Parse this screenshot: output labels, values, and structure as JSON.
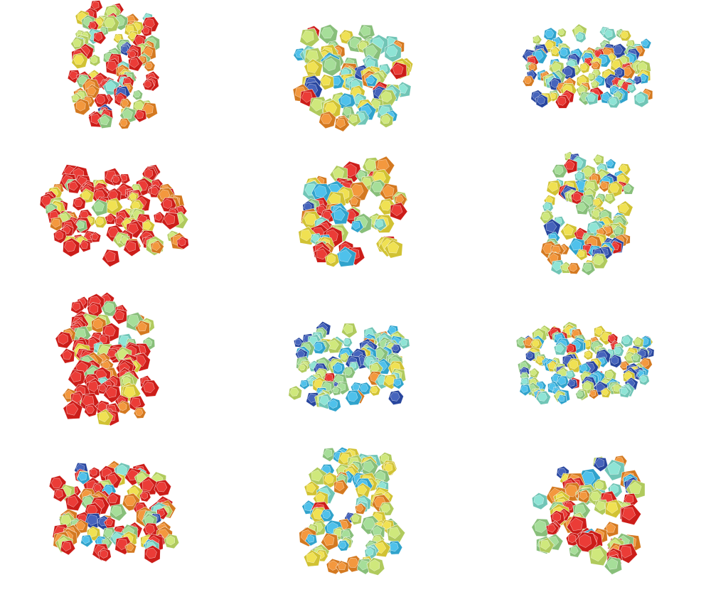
{
  "palette": {
    "red": "#e8211c",
    "orange": "#f18a24",
    "yellow": "#eedd3a",
    "yellow_green": "#c8e56a",
    "light_green": "#9ad98b",
    "aqua": "#7fe0cf",
    "cyan": "#37b9e8",
    "blue": "#2d4fb3",
    "edge": "#ffffff"
  },
  "specimens": [
    {
      "id": "r1c1",
      "shape": "column",
      "weights": {
        "red": 0.38,
        "orange": 0.12,
        "yellow": 0.14,
        "yellow_green": 0.14,
        "light_green": 0.12,
        "aqua": 0.06,
        "cyan": 0.02,
        "blue": 0.02
      }
    },
    {
      "id": "r1c2",
      "shape": "block",
      "weights": {
        "red": 0.06,
        "orange": 0.1,
        "yellow": 0.2,
        "yellow_green": 0.2,
        "light_green": 0.16,
        "aqua": 0.12,
        "cyan": 0.08,
        "blue": 0.08
      }
    },
    {
      "id": "r1c3",
      "shape": "bar",
      "weights": {
        "red": 0.12,
        "orange": 0.12,
        "yellow": 0.12,
        "yellow_green": 0.12,
        "light_green": 0.12,
        "aqua": 0.12,
        "cyan": 0.14,
        "blue": 0.14
      }
    },
    {
      "id": "r2c1",
      "shape": "scattered",
      "weights": {
        "red": 0.56,
        "orange": 0.16,
        "yellow": 0.1,
        "yellow_green": 0.1,
        "light_green": 0.06,
        "aqua": 0.01,
        "cyan": 0.005,
        "blue": 0.005
      }
    },
    {
      "id": "r2c2",
      "shape": "block",
      "weights": {
        "red": 0.24,
        "orange": 0.14,
        "yellow": 0.16,
        "yellow_green": 0.14,
        "light_green": 0.12,
        "aqua": 0.08,
        "cyan": 0.08,
        "blue": 0.04
      }
    },
    {
      "id": "r2c3",
      "shape": "column",
      "weights": {
        "red": 0.1,
        "orange": 0.1,
        "yellow": 0.16,
        "yellow_green": 0.16,
        "light_green": 0.14,
        "aqua": 0.12,
        "cyan": 0.12,
        "blue": 0.1
      }
    },
    {
      "id": "r3c1",
      "shape": "scattered",
      "weights": {
        "red": 0.62,
        "orange": 0.12,
        "yellow": 0.1,
        "yellow_green": 0.08,
        "light_green": 0.06,
        "aqua": 0.01,
        "cyan": 0.005,
        "blue": 0.005
      }
    },
    {
      "id": "r3c2",
      "shape": "bar",
      "weights": {
        "red": 0.02,
        "orange": 0.04,
        "yellow": 0.12,
        "yellow_green": 0.14,
        "light_green": 0.16,
        "aqua": 0.16,
        "cyan": 0.18,
        "blue": 0.18
      }
    },
    {
      "id": "r3c3",
      "shape": "bar",
      "weights": {
        "red": 0.04,
        "orange": 0.06,
        "yellow": 0.14,
        "yellow_green": 0.16,
        "light_green": 0.16,
        "aqua": 0.16,
        "cyan": 0.14,
        "blue": 0.14
      }
    },
    {
      "id": "r4c1",
      "shape": "block",
      "weights": {
        "red": 0.32,
        "orange": 0.18,
        "yellow": 0.1,
        "yellow_green": 0.1,
        "light_green": 0.12,
        "aqua": 0.06,
        "cyan": 0.04,
        "blue": 0.08
      }
    },
    {
      "id": "r4c2",
      "shape": "column",
      "weights": {
        "red": 0.02,
        "orange": 0.1,
        "yellow": 0.24,
        "yellow_green": 0.2,
        "light_green": 0.16,
        "aqua": 0.12,
        "cyan": 0.12,
        "blue": 0.04
      }
    },
    {
      "id": "r4c3",
      "shape": "block",
      "weights": {
        "red": 0.26,
        "orange": 0.18,
        "yellow": 0.12,
        "yellow_green": 0.12,
        "light_green": 0.12,
        "aqua": 0.06,
        "cyan": 0.04,
        "blue": 0.1
      }
    }
  ]
}
